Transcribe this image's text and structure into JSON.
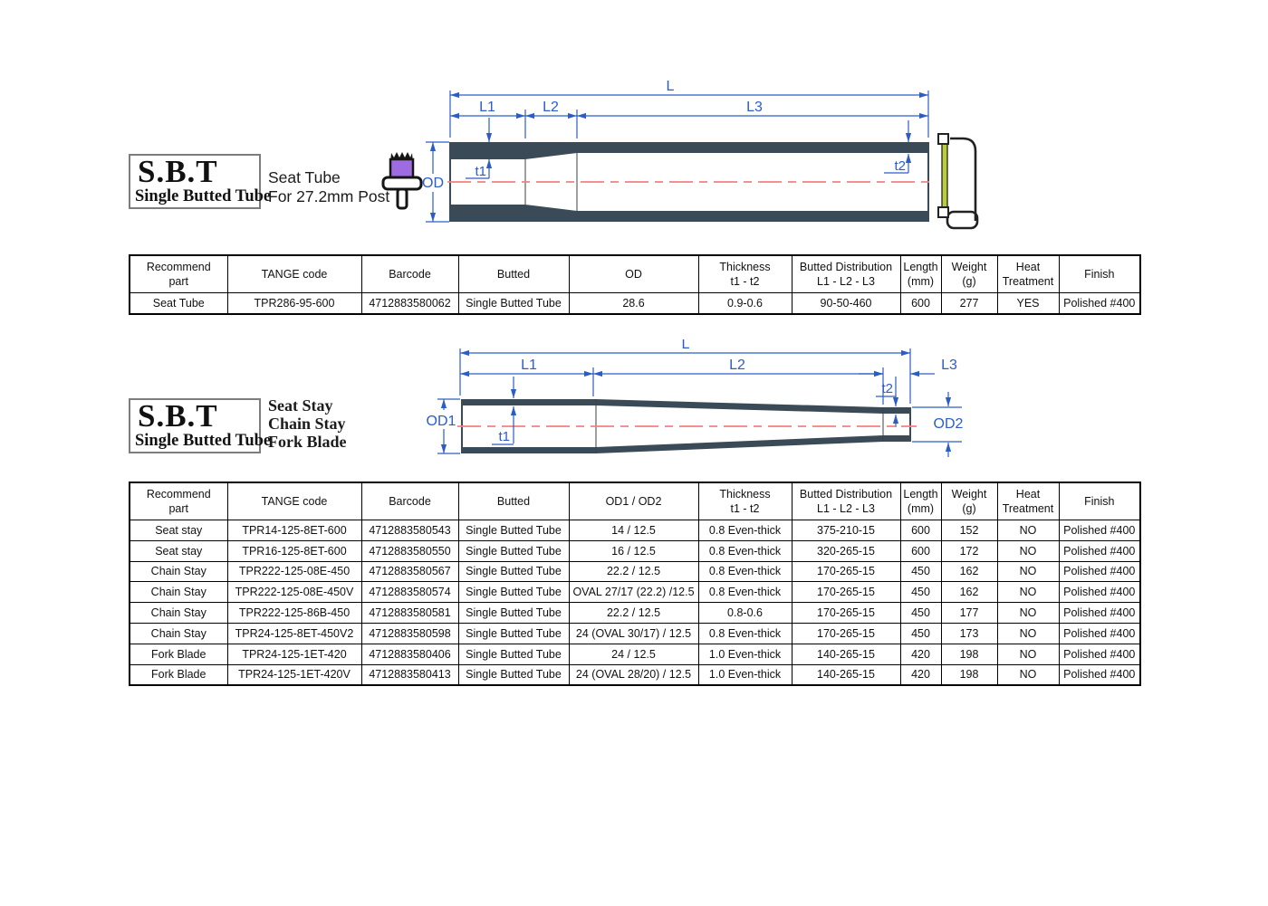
{
  "colors": {
    "tube_wall": "#3b4a57",
    "dimension_blue": "#2b5dc7",
    "centerline_red": "#f28080",
    "saw_blade_yellow": "#b8cc3c",
    "seatpost_purple": "#9e6ce0",
    "badge_border_gray": "#7d7d7d"
  },
  "section1": {
    "badge": {
      "title": "S.B.T",
      "subtitle": "Single Butted Tube"
    },
    "caption": [
      "Seat Tube",
      "For 27.2mm Post"
    ],
    "diagram": {
      "labels": {
        "L": "L",
        "L1": "L1",
        "L2": "L2",
        "L3": "L3",
        "OD": "OD",
        "t1": "t1",
        "t2": "t2"
      }
    },
    "table": {
      "headers": [
        [
          "Recommend",
          "part"
        ],
        [
          "TANGE code"
        ],
        [
          "Barcode"
        ],
        [
          "Butted"
        ],
        [
          "OD"
        ],
        [
          "Thickness",
          "t1  -  t2"
        ],
        [
          "Butted Distribution",
          "L1 - L2 - L3"
        ],
        [
          "Length",
          "(mm)"
        ],
        [
          "Weight",
          "(g)"
        ],
        [
          "Heat",
          "Treatment"
        ],
        [
          "Finish"
        ]
      ],
      "rows": [
        [
          "Seat Tube",
          "TPR286-95-600",
          "4712883580062",
          "Single Butted Tube",
          "28.6",
          "0.9-0.6",
          "90-50-460",
          "600",
          "277",
          "YES",
          "Polished #400"
        ]
      ]
    }
  },
  "section2": {
    "badge": {
      "title": "S.B.T",
      "subtitle": "Single Butted Tube"
    },
    "caption": [
      "Seat Stay",
      "Chain Stay",
      "Fork Blade"
    ],
    "diagram": {
      "labels": {
        "L": "L",
        "L1": "L1",
        "L2": "L2",
        "L3": "L3",
        "OD1": "OD1",
        "OD2": "OD2",
        "t1": "t1",
        "t2": "t2"
      }
    },
    "table": {
      "headers": [
        [
          "Recommend",
          "part"
        ],
        [
          "TANGE code"
        ],
        [
          "Barcode"
        ],
        [
          "Butted"
        ],
        [
          "OD1 / OD2"
        ],
        [
          "Thickness",
          "t1  -  t2"
        ],
        [
          "Butted Distribution",
          "L1 - L2 - L3"
        ],
        [
          "Length",
          "(mm)"
        ],
        [
          "Weight",
          "(g)"
        ],
        [
          "Heat",
          "Treatment"
        ],
        [
          "Finish"
        ]
      ],
      "rows": [
        [
          "Seat stay",
          "TPR14-125-8ET-600",
          "4712883580543",
          "Single Butted Tube",
          "14  /  12.5",
          "0.8 Even-thick",
          "375-210-15",
          "600",
          "152",
          "NO",
          "Polished #400"
        ],
        [
          "Seat stay",
          "TPR16-125-8ET-600",
          "4712883580550",
          "Single Butted Tube",
          "16  /  12.5",
          "0.8 Even-thick",
          "320-265-15",
          "600",
          "172",
          "NO",
          "Polished #400"
        ],
        [
          "Chain Stay",
          "TPR222-125-08E-450",
          "4712883580567",
          "Single Butted Tube",
          "22.2  /  12.5",
          "0.8 Even-thick",
          "170-265-15",
          "450",
          "162",
          "NO",
          "Polished #400"
        ],
        [
          "Chain Stay",
          "TPR222-125-08E-450V",
          "4712883580574",
          "Single Butted Tube",
          "OVAL 27/17 (22.2) /12.5",
          "0.8 Even-thick",
          "170-265-15",
          "450",
          "162",
          "NO",
          "Polished #400"
        ],
        [
          "Chain Stay",
          "TPR222-125-86B-450",
          "4712883580581",
          "Single Butted Tube",
          "22.2  /  12.5",
          "0.8-0.6",
          "170-265-15",
          "450",
          "177",
          "NO",
          "Polished #400"
        ],
        [
          "Chain Stay",
          "TPR24-125-8ET-450V2",
          "4712883580598",
          "Single Butted Tube",
          "24 (OVAL 30/17)  / 12.5",
          "0.8 Even-thick",
          "170-265-15",
          "450",
          "173",
          "NO",
          "Polished #400"
        ],
        [
          "Fork Blade",
          "TPR24-125-1ET-420",
          "4712883580406",
          "Single Butted Tube",
          "24  /  12.5",
          "1.0 Even-thick",
          "140-265-15",
          "420",
          "198",
          "NO",
          "Polished #400"
        ],
        [
          "Fork Blade",
          "TPR24-125-1ET-420V",
          "4712883580413",
          "Single Butted Tube",
          "24 (OVAL 28/20)  /  12.5",
          "1.0 Even-thick",
          "140-265-15",
          "420",
          "198",
          "NO",
          "Polished #400"
        ]
      ]
    }
  }
}
